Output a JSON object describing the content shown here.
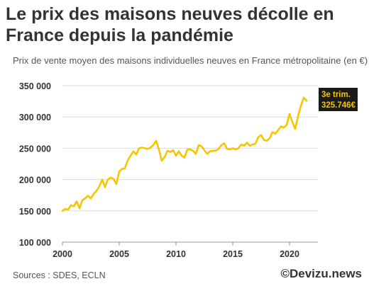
{
  "header": {
    "title": "Le prix des maisons neuves décolle en France depuis la pandémie",
    "subtitle": "Prix de vente moyen des maisons individuelles neuves en France métropolitaine (en €)"
  },
  "footer": {
    "sources": "Sources : SDES, ECLN",
    "brand": "©Devizu.news"
  },
  "colors": {
    "line": "#F7C600",
    "label_bg": "#1a1a1a",
    "label_text": "#F7C600",
    "grid": "#dcdcdc",
    "text": "#333333"
  },
  "chart_data": {
    "type": "line",
    "xlim": [
      2000,
      2022
    ],
    "ylim": [
      100000,
      350000
    ],
    "x_ticks": [
      2000,
      2005,
      2010,
      2015,
      2020
    ],
    "x_tick_labels": [
      "2000",
      "2005",
      "2010",
      "2015",
      "2020"
    ],
    "y_ticks": [
      100000,
      150000,
      200000,
      250000,
      300000,
      350000
    ],
    "y_tick_labels": [
      "100 000",
      "150 000",
      "200 000",
      "250 000",
      "300 000",
      "350 000"
    ],
    "grid": "horizontal",
    "annotation": {
      "line1": "3e trim.",
      "line2": "325.746€",
      "x": 2021.5,
      "y": 325746
    },
    "series": [
      {
        "x": [
          2000.0,
          2000.25,
          2000.5,
          2000.75,
          2001.0,
          2001.25,
          2001.5,
          2001.75,
          2002.0,
          2002.25,
          2002.5,
          2002.75,
          2003.0,
          2003.25,
          2003.5,
          2003.75,
          2004.0,
          2004.25,
          2004.5,
          2004.75,
          2005.0,
          2005.25,
          2005.5,
          2005.75,
          2006.0,
          2006.25,
          2006.5,
          2006.75,
          2007.0,
          2007.25,
          2007.5,
          2007.75,
          2008.0,
          2008.25,
          2008.5,
          2008.75,
          2009.0,
          2009.25,
          2009.5,
          2009.75,
          2010.0,
          2010.25,
          2010.5,
          2010.75,
          2011.0,
          2011.25,
          2011.5,
          2011.75,
          2012.0,
          2012.25,
          2012.5,
          2012.75,
          2013.0,
          2013.25,
          2013.5,
          2013.75,
          2014.0,
          2014.25,
          2014.5,
          2014.75,
          2015.0,
          2015.25,
          2015.5,
          2015.75,
          2016.0,
          2016.25,
          2016.5,
          2016.75,
          2017.0,
          2017.25,
          2017.5,
          2017.75,
          2018.0,
          2018.25,
          2018.5,
          2018.75,
          2019.0,
          2019.25,
          2019.5,
          2019.75,
          2020.0,
          2020.25,
          2020.5,
          2020.75,
          2021.0,
          2021.25,
          2021.5
        ],
        "values": [
          150000,
          153000,
          152000,
          159000,
          157000,
          165000,
          154000,
          167000,
          170000,
          174000,
          170000,
          177000,
          182000,
          189000,
          200000,
          188000,
          200000,
          203000,
          201000,
          193000,
          213000,
          217000,
          218000,
          231000,
          238000,
          245000,
          240000,
          250000,
          251000,
          250000,
          249000,
          251000,
          255000,
          262000,
          248000,
          230000,
          236000,
          246000,
          244000,
          247000,
          238000,
          245000,
          238000,
          235000,
          248000,
          248000,
          246000,
          241000,
          255000,
          253000,
          247000,
          241000,
          245000,
          246000,
          246000,
          249000,
          255000,
          258000,
          249000,
          248000,
          250000,
          248000,
          250000,
          256000,
          254000,
          259000,
          254000,
          256000,
          257000,
          268000,
          271000,
          263000,
          262000,
          266000,
          276000,
          273000,
          279000,
          285000,
          283000,
          287000,
          305000,
          292000,
          281000,
          301000,
          318000,
          331000,
          325746
        ]
      }
    ]
  }
}
